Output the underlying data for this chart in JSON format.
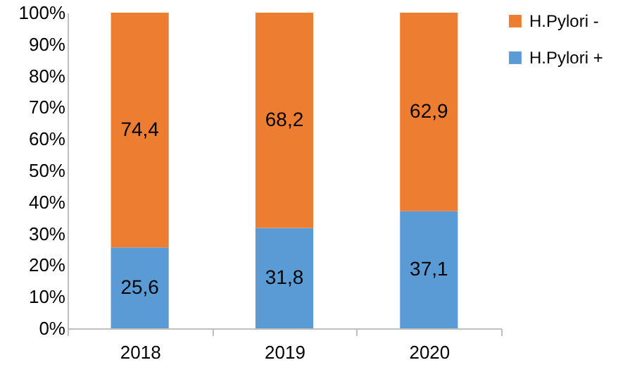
{
  "chart_data": {
    "type": "bar",
    "stacked": true,
    "categories": [
      "2018",
      "2019",
      "2020"
    ],
    "series": [
      {
        "name": "H.Pylori +",
        "color": "#5b9bd5",
        "values": [
          25.6,
          31.8,
          37.1
        ],
        "value_labels": [
          "25,6",
          "31,8",
          "37,1"
        ]
      },
      {
        "name": "H.Pylori -",
        "color": "#ed7d31",
        "values": [
          74.4,
          68.2,
          62.9
        ],
        "value_labels": [
          "74,4",
          "68,2",
          "62,9"
        ]
      }
    ],
    "ylim": [
      0,
      100
    ],
    "yticks": [
      {
        "value": 0,
        "label": "0%"
      },
      {
        "value": 10,
        "label": "10%"
      },
      {
        "value": 20,
        "label": "20%"
      },
      {
        "value": 30,
        "label": "30%"
      },
      {
        "value": 40,
        "label": "40%"
      },
      {
        "value": 50,
        "label": "50%"
      },
      {
        "value": 60,
        "label": "60%"
      },
      {
        "value": 70,
        "label": "70%"
      },
      {
        "value": 80,
        "label": "80%"
      },
      {
        "value": 90,
        "label": "90%"
      },
      {
        "value": 100,
        "label": "100%"
      }
    ],
    "grid": false,
    "legend": "right"
  }
}
